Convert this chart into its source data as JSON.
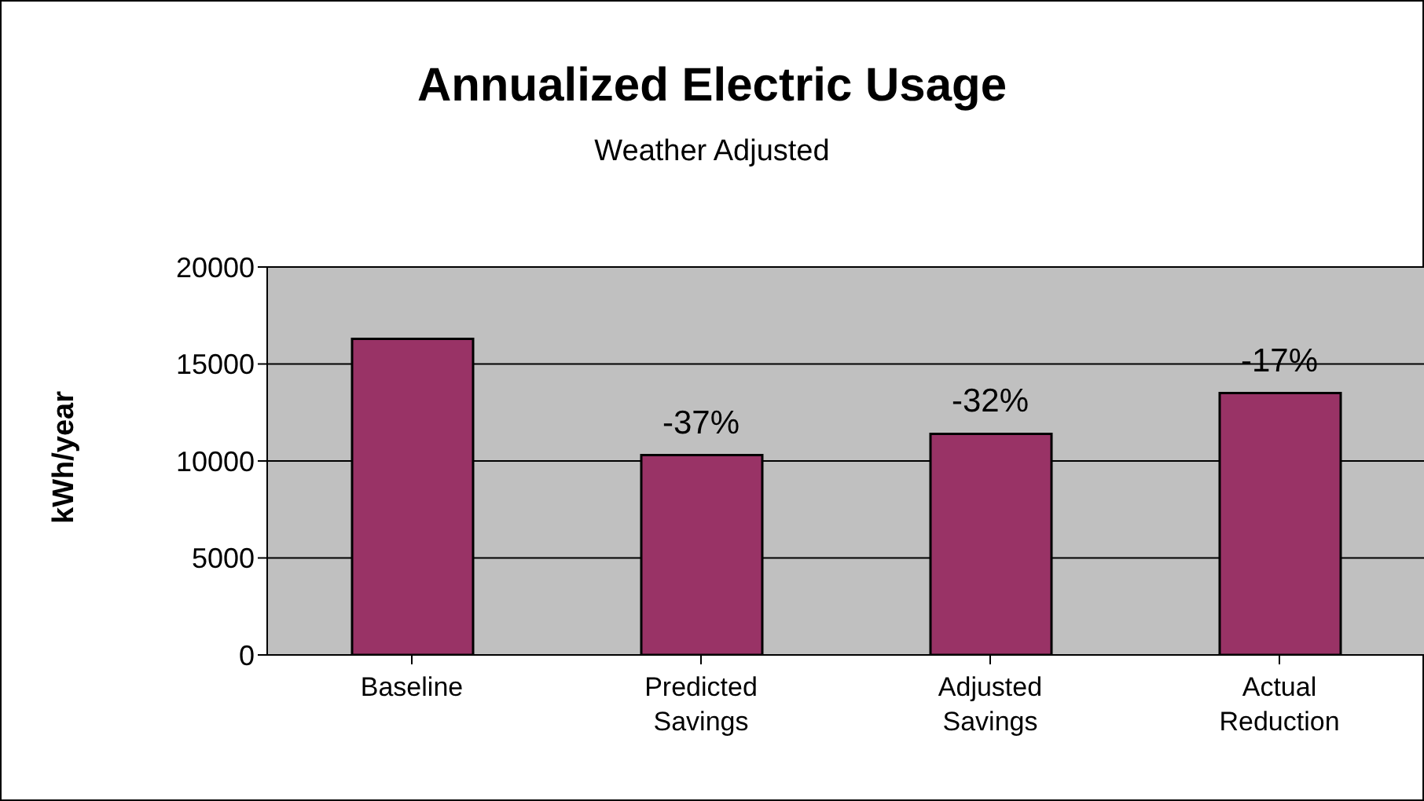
{
  "chart_data": {
    "type": "bar",
    "title": "Annualized Electric Usage",
    "subtitle": "Weather Adjusted",
    "ylabel": "kWh/year",
    "categories": [
      "Baseline",
      "Predicted Savings",
      "Adjusted Savings",
      "Actual Reduction"
    ],
    "values": [
      16300,
      10300,
      11400,
      13500
    ],
    "color": "#993366",
    "ylim": [
      0,
      20000
    ],
    "yticks": [
      0,
      5000,
      10000,
      15000,
      20000
    ],
    "grid": "y",
    "annotations": [
      {
        "text": "-37%",
        "x": "Predicted Savings",
        "y": 10300
      },
      {
        "text": "-32%",
        "x": "Adjusted Savings",
        "y": 11400
      },
      {
        "text": "-17%",
        "x": "Actual Reduction",
        "y": 13500
      }
    ]
  }
}
